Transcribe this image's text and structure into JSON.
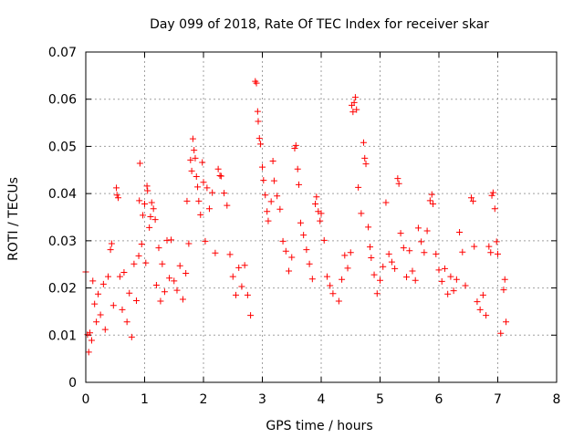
{
  "chart_data": {
    "type": "scatter",
    "title": "Day 099 of 2018, Rate Of TEC Index for receiver skar",
    "xlabel": "GPS time / hours",
    "ylabel": "ROTI / TECUs",
    "xlim": [
      0,
      8
    ],
    "ylim": [
      0,
      0.07
    ],
    "xticks": [
      "0",
      "1",
      "2",
      "3",
      "4",
      "5",
      "6",
      "7",
      "8"
    ],
    "yticks": [
      "0",
      "0.01",
      "0.02",
      "0.03",
      "0.04",
      "0.05",
      "0.06",
      "0.07"
    ],
    "grid": true,
    "marker": "+",
    "color": "#ff0000",
    "series": [
      {
        "name": "ROTI",
        "points": [
          [
            0.0,
            0.0234
          ],
          [
            0.03,
            0.0101
          ],
          [
            0.05,
            0.0064
          ],
          [
            0.07,
            0.0105
          ],
          [
            0.1,
            0.0089
          ],
          [
            0.12,
            0.0215
          ],
          [
            0.15,
            0.0166
          ],
          [
            0.18,
            0.0128
          ],
          [
            0.21,
            0.0187
          ],
          [
            0.25,
            0.0143
          ],
          [
            0.3,
            0.0208
          ],
          [
            0.33,
            0.0112
          ],
          [
            0.38,
            0.0224
          ],
          [
            0.42,
            0.0281
          ],
          [
            0.44,
            0.0294
          ],
          [
            0.47,
            0.0163
          ],
          [
            0.52,
            0.0412
          ],
          [
            0.53,
            0.0397
          ],
          [
            0.55,
            0.0391
          ],
          [
            0.58,
            0.0224
          ],
          [
            0.62,
            0.0154
          ],
          [
            0.65,
            0.0233
          ],
          [
            0.7,
            0.0128
          ],
          [
            0.74,
            0.0189
          ],
          [
            0.78,
            0.0096
          ],
          [
            0.82,
            0.0251
          ],
          [
            0.86,
            0.0173
          ],
          [
            0.9,
            0.0268
          ],
          [
            0.91,
            0.0385
          ],
          [
            0.92,
            0.0464
          ],
          [
            0.95,
            0.0293
          ],
          [
            0.97,
            0.0354
          ],
          [
            1.0,
            0.0378
          ],
          [
            1.02,
            0.0253
          ],
          [
            1.04,
            0.0416
          ],
          [
            1.05,
            0.0406
          ],
          [
            1.08,
            0.0328
          ],
          [
            1.1,
            0.0351
          ],
          [
            1.12,
            0.0381
          ],
          [
            1.15,
            0.0368
          ],
          [
            1.18,
            0.0345
          ],
          [
            1.2,
            0.0206
          ],
          [
            1.24,
            0.0285
          ],
          [
            1.27,
            0.0172
          ],
          [
            1.3,
            0.0251
          ],
          [
            1.34,
            0.0192
          ],
          [
            1.38,
            0.0301
          ],
          [
            1.42,
            0.0221
          ],
          [
            1.45,
            0.0302
          ],
          [
            1.5,
            0.0215
          ],
          [
            1.55,
            0.0195
          ],
          [
            1.6,
            0.0247
          ],
          [
            1.65,
            0.0176
          ],
          [
            1.7,
            0.0231
          ],
          [
            1.72,
            0.0384
          ],
          [
            1.75,
            0.0294
          ],
          [
            1.78,
            0.0471
          ],
          [
            1.8,
            0.0448
          ],
          [
            1.82,
            0.0516
          ],
          [
            1.84,
            0.0492
          ],
          [
            1.86,
            0.0475
          ],
          [
            1.88,
            0.0436
          ],
          [
            1.9,
            0.0414
          ],
          [
            1.92,
            0.0384
          ],
          [
            1.95,
            0.0355
          ],
          [
            1.98,
            0.0466
          ],
          [
            2.0,
            0.0424
          ],
          [
            2.03,
            0.0299
          ],
          [
            2.06,
            0.0412
          ],
          [
            2.1,
            0.0368
          ],
          [
            2.15,
            0.0402
          ],
          [
            2.2,
            0.0274
          ],
          [
            2.25,
            0.0452
          ],
          [
            2.28,
            0.0438
          ],
          [
            2.3,
            0.0437
          ],
          [
            2.35,
            0.0401
          ],
          [
            2.4,
            0.0375
          ],
          [
            2.45,
            0.0271
          ],
          [
            2.5,
            0.0224
          ],
          [
            2.55,
            0.0185
          ],
          [
            2.6,
            0.0243
          ],
          [
            2.65,
            0.0203
          ],
          [
            2.7,
            0.0248
          ],
          [
            2.75,
            0.0185
          ],
          [
            2.8,
            0.0142
          ],
          [
            2.88,
            0.0638
          ],
          [
            2.9,
            0.0634
          ],
          [
            2.92,
            0.0574
          ],
          [
            2.93,
            0.0553
          ],
          [
            2.95,
            0.0517
          ],
          [
            2.97,
            0.0505
          ],
          [
            3.0,
            0.0456
          ],
          [
            3.02,
            0.0428
          ],
          [
            3.05,
            0.0397
          ],
          [
            3.08,
            0.0362
          ],
          [
            3.1,
            0.0342
          ],
          [
            3.15,
            0.0383
          ],
          [
            3.18,
            0.0469
          ],
          [
            3.2,
            0.0427
          ],
          [
            3.25,
            0.0395
          ],
          [
            3.3,
            0.0367
          ],
          [
            3.35,
            0.0299
          ],
          [
            3.4,
            0.0278
          ],
          [
            3.45,
            0.0236
          ],
          [
            3.5,
            0.0265
          ],
          [
            3.55,
            0.0496
          ],
          [
            3.57,
            0.0502
          ],
          [
            3.6,
            0.0452
          ],
          [
            3.62,
            0.0419
          ],
          [
            3.65,
            0.0338
          ],
          [
            3.7,
            0.0312
          ],
          [
            3.75,
            0.0281
          ],
          [
            3.8,
            0.0251
          ],
          [
            3.85,
            0.0219
          ],
          [
            3.9,
            0.0378
          ],
          [
            3.92,
            0.0393
          ],
          [
            3.95,
            0.0362
          ],
          [
            3.98,
            0.0342
          ],
          [
            4.0,
            0.0358
          ],
          [
            4.05,
            0.0301
          ],
          [
            4.1,
            0.0224
          ],
          [
            4.15,
            0.0205
          ],
          [
            4.2,
            0.0188
          ],
          [
            4.3,
            0.0172
          ],
          [
            4.35,
            0.0218
          ],
          [
            4.4,
            0.0269
          ],
          [
            4.45,
            0.0242
          ],
          [
            4.5,
            0.0275
          ],
          [
            4.52,
            0.0587
          ],
          [
            4.54,
            0.0573
          ],
          [
            4.56,
            0.0593
          ],
          [
            4.58,
            0.0604
          ],
          [
            4.6,
            0.0578
          ],
          [
            4.63,
            0.0413
          ],
          [
            4.68,
            0.0358
          ],
          [
            4.72,
            0.0508
          ],
          [
            4.74,
            0.0475
          ],
          [
            4.76,
            0.0463
          ],
          [
            4.8,
            0.0329
          ],
          [
            4.83,
            0.0287
          ],
          [
            4.85,
            0.0264
          ],
          [
            4.9,
            0.0228
          ],
          [
            4.95,
            0.0188
          ],
          [
            5.0,
            0.0216
          ],
          [
            5.05,
            0.0245
          ],
          [
            5.1,
            0.0381
          ],
          [
            5.15,
            0.0272
          ],
          [
            5.2,
            0.0255
          ],
          [
            5.25,
            0.0241
          ],
          [
            5.3,
            0.0432
          ],
          [
            5.32,
            0.0421
          ],
          [
            5.35,
            0.0316
          ],
          [
            5.4,
            0.0285
          ],
          [
            5.45,
            0.0223
          ],
          [
            5.5,
            0.0279
          ],
          [
            5.55,
            0.0236
          ],
          [
            5.6,
            0.0216
          ],
          [
            5.65,
            0.0327
          ],
          [
            5.7,
            0.0298
          ],
          [
            5.75,
            0.0275
          ],
          [
            5.8,
            0.0321
          ],
          [
            5.85,
            0.0385
          ],
          [
            5.88,
            0.0398
          ],
          [
            5.9,
            0.0378
          ],
          [
            5.95,
            0.0272
          ],
          [
            6.0,
            0.0238
          ],
          [
            6.05,
            0.0214
          ],
          [
            6.1,
            0.0241
          ],
          [
            6.15,
            0.0187
          ],
          [
            6.2,
            0.0224
          ],
          [
            6.25,
            0.0194
          ],
          [
            6.3,
            0.0218
          ],
          [
            6.35,
            0.0318
          ],
          [
            6.4,
            0.0276
          ],
          [
            6.45,
            0.0205
          ],
          [
            6.55,
            0.0391
          ],
          [
            6.58,
            0.0384
          ],
          [
            6.6,
            0.0288
          ],
          [
            6.65,
            0.0171
          ],
          [
            6.7,
            0.0154
          ],
          [
            6.75,
            0.0185
          ],
          [
            6.8,
            0.0142
          ],
          [
            6.85,
            0.0288
          ],
          [
            6.88,
            0.0275
          ],
          [
            6.9,
            0.0396
          ],
          [
            6.92,
            0.0402
          ],
          [
            6.95,
            0.0368
          ],
          [
            6.98,
            0.0298
          ],
          [
            7.0,
            0.0272
          ],
          [
            7.05,
            0.0104
          ],
          [
            7.1,
            0.0196
          ],
          [
            7.12,
            0.0218
          ],
          [
            7.14,
            0.0128
          ]
        ]
      }
    ]
  }
}
